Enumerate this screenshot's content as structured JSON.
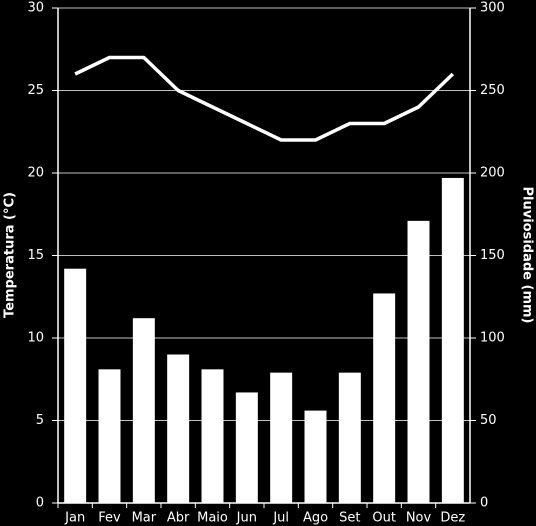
{
  "chart_data": {
    "type": "bar",
    "categories": [
      "Jan",
      "Fev",
      "Mar",
      "Abr",
      "Maio",
      "Jun",
      "Jul",
      "Ago",
      "Set",
      "Out",
      "Nov",
      "Dez"
    ],
    "series": [
      {
        "name": "Pluviosidade",
        "type": "bar",
        "axis": "y2",
        "color": "#ffffff",
        "values": [
          142,
          81,
          112,
          90,
          81,
          67,
          79,
          56,
          79,
          127,
          171,
          197
        ]
      },
      {
        "name": "Temperatura",
        "type": "line",
        "axis": "y",
        "color": "#ffffff",
        "values": [
          26,
          27,
          27,
          25,
          24,
          23,
          22,
          22,
          23,
          23,
          24,
          26
        ]
      }
    ],
    "y_label": "Temperatura (°C)",
    "y2_label": "Pluviosidade (mm)",
    "ylim": [
      0,
      30
    ],
    "yticks": [
      0,
      5,
      10,
      15,
      20,
      25,
      30
    ],
    "y2lim": [
      0,
      300
    ],
    "y2ticks": [
      0,
      50,
      100,
      150,
      200,
      250,
      300
    ],
    "grid": true
  }
}
